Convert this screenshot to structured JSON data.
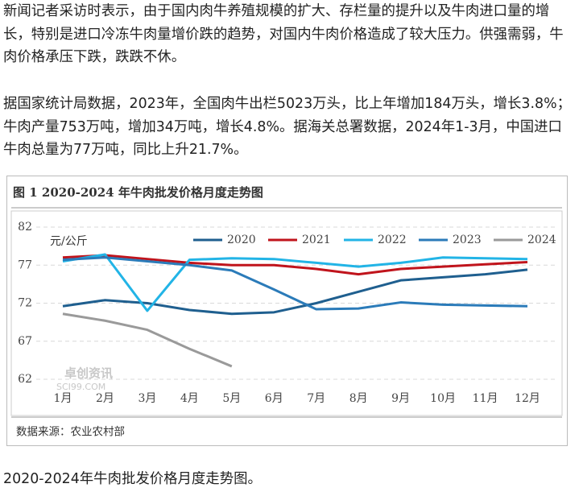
{
  "paragraphs": [
    "新闻记者采访时表示，由于国内肉牛养殖规模的扩大、存栏量的提升以及牛肉进口量的增长，特别是进口冷冻牛肉量增价跌的趋势，对国内牛肉价格造成了较大压力。供强需弱，牛肉价格承压下跌，跌跌不休。",
    "据国家统计局数据，2023年，全国肉牛出栏5023万头，比上年增加184万头，增长3.8%；牛肉产量753万吨，增加34万吨，增长4.8%。据海关总署数据，2024年1-3月，中国进口牛肉总量为77万吨，同比上升21.7%。"
  ],
  "chart_data": {
    "type": "line",
    "title": "图 1 2020-2024 年牛肉批发价格月度走势图",
    "y_label": "元/公斤",
    "watermark": [
      "卓创资讯",
      "SCI99.COM"
    ],
    "source": "数据来源：农业农村部",
    "categories": [
      "1月",
      "2月",
      "3月",
      "4月",
      "5月",
      "6月",
      "7月",
      "8月",
      "9月",
      "10月",
      "11月",
      "12月"
    ],
    "series": [
      {
        "name": "2020",
        "color": "#1f5f8f",
        "values": [
          71.6,
          72.4,
          72.0,
          71.1,
          70.6,
          70.8,
          72.0,
          73.5,
          75.0,
          75.4,
          75.8,
          76.4
        ]
      },
      {
        "name": "2021",
        "color": "#c0141c",
        "values": [
          78.0,
          78.3,
          77.8,
          77.3,
          77.0,
          77.0,
          76.5,
          75.8,
          76.5,
          76.8,
          77.1,
          77.4
        ]
      },
      {
        "name": "2022",
        "color": "#22b4e6",
        "values": [
          77.5,
          78.4,
          71.0,
          77.7,
          77.9,
          77.8,
          77.3,
          76.8,
          77.3,
          78.0,
          77.9,
          77.8
        ]
      },
      {
        "name": "2023",
        "color": "#2b7bb9",
        "values": [
          77.7,
          78.0,
          77.5,
          77.0,
          76.3,
          73.8,
          71.2,
          71.3,
          72.1,
          71.8,
          71.7,
          71.6
        ]
      },
      {
        "name": "2024",
        "color": "#9a9a9a",
        "values": [
          70.6,
          69.7,
          68.5,
          66.0,
          63.7,
          null,
          null,
          null,
          null,
          null,
          null,
          null
        ]
      }
    ],
    "ylim": [
      62,
      82
    ],
    "yticks": [
      62,
      67,
      72,
      77,
      82
    ],
    "grid": true,
    "legend": "top"
  },
  "caption": "2020-2024年牛肉批发价格月度走势图。"
}
